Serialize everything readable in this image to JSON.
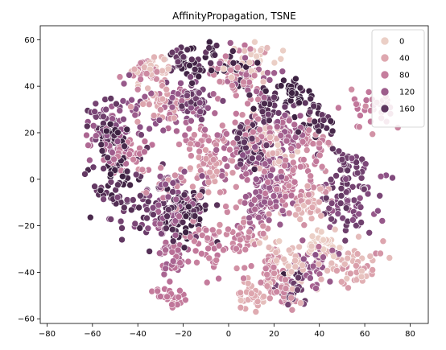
{
  "chart_data": {
    "type": "scatter",
    "title": "AffinityPropagation, TSNE",
    "xlabel": "",
    "ylabel": "",
    "xlim": [
      -83,
      88
    ],
    "ylim": [
      -62,
      66
    ],
    "xticks": [
      -80,
      -60,
      -40,
      -20,
      0,
      20,
      40,
      60,
      80
    ],
    "yticks": [
      -60,
      -40,
      -20,
      0,
      20,
      40,
      60
    ],
    "xtick_labels": [
      "−80",
      "−60",
      "−40",
      "−20",
      "0",
      "20",
      "40",
      "60",
      "80"
    ],
    "ytick_labels": [
      "−60",
      "−40",
      "−20",
      "0",
      "20",
      "40",
      "60"
    ],
    "grid": false,
    "legend": {
      "position": "top-right",
      "entries": [
        {
          "label": "0",
          "value": 0
        },
        {
          "label": "40",
          "value": 40
        },
        {
          "label": "80",
          "value": 80
        },
        {
          "label": "120",
          "value": 120
        },
        {
          "label": "160",
          "value": 160
        }
      ]
    },
    "hue_range": [
      0,
      180
    ],
    "colors": {
      "palette": [
        "#ebcfc6",
        "#dca2ac",
        "#bf7499",
        "#8c5186",
        "#3a203f"
      ],
      "marker_edge": "#ffffff",
      "axis": "#000000"
    },
    "point_count": 2200,
    "points": []
  }
}
